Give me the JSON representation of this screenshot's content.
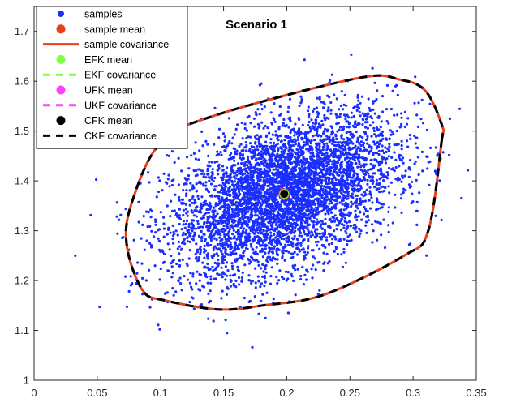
{
  "chart_data": {
    "type": "scatter",
    "title": "Scenario 1",
    "xlabel": "",
    "ylabel": "",
    "xlim": [
      0,
      0.35
    ],
    "ylim": [
      1.0,
      1.75
    ],
    "xticks": [
      0,
      0.05,
      0.1,
      0.15,
      0.2,
      0.25,
      0.3,
      0.35
    ],
    "xtick_labels": [
      "0",
      "0.05",
      "0.1",
      "0.15",
      "0.2",
      "0.25",
      "0.3",
      "0.35"
    ],
    "yticks": [
      1.0,
      1.1,
      1.2,
      1.3,
      1.4,
      1.5,
      1.6,
      1.7
    ],
    "ytick_labels": [
      "1",
      "1.1",
      "1.2",
      "1.3",
      "1.4",
      "1.5",
      "1.6",
      "1.7"
    ],
    "grid": false,
    "legend_position": "top-left",
    "samples": {
      "name": "samples",
      "color": "#1a2eff",
      "mean": [
        0.198,
        1.374
      ],
      "std": [
        0.044,
        0.08
      ],
      "correlation": 0.45,
      "count": 5000
    },
    "means": [
      {
        "name": "sample mean",
        "x": 0.198,
        "y": 1.374,
        "color": "#e8401c"
      },
      {
        "name": "EFK mean",
        "x": 0.198,
        "y": 1.374,
        "color": "#7fff3f"
      },
      {
        "name": "UFK mean",
        "x": 0.198,
        "y": 1.374,
        "color": "#ff40ff"
      },
      {
        "name": "CFK mean",
        "x": 0.198,
        "y": 1.374,
        "color": "#000000"
      }
    ],
    "covariance_ellipses": [
      {
        "name": "sample covariance",
        "style": "solid",
        "color": "#e8401c"
      },
      {
        "name": "EKF covariance",
        "style": "dashed",
        "color": "#7fff3f"
      },
      {
        "name": "UKF covariance",
        "style": "dashed",
        "color": "#ff40ff"
      },
      {
        "name": "CKF covariance",
        "style": "dashed",
        "color": "#000000"
      }
    ],
    "ellipse": {
      "center": [
        0.198,
        1.374
      ],
      "points": [
        [
          0.3226,
          1.48
        ],
        [
          0.323,
          1.51
        ],
        [
          0.31,
          1.58
        ],
        [
          0.29,
          1.603
        ],
        [
          0.256,
          1.606
        ],
        [
          0.144,
          1.532
        ],
        [
          0.1,
          1.476
        ],
        [
          0.0772,
          1.355
        ],
        [
          0.0734,
          1.27
        ],
        [
          0.086,
          1.18
        ],
        [
          0.104,
          1.16
        ],
        [
          0.146,
          1.142
        ],
        [
          0.181,
          1.15
        ],
        [
          0.23,
          1.172
        ],
        [
          0.293,
          1.25
        ],
        [
          0.312,
          1.3
        ]
      ]
    }
  },
  "legend": [
    {
      "label": "samples",
      "kind": "dot",
      "color": "#1a2eff"
    },
    {
      "label": "sample mean",
      "kind": "bigdot",
      "color": "#e8401c"
    },
    {
      "label": "sample covariance",
      "kind": "solid",
      "color": "#e8401c"
    },
    {
      "label": "EFK mean",
      "kind": "bigdot",
      "color": "#7fff3f"
    },
    {
      "label": "EKF covariance",
      "kind": "dashed",
      "color": "#7fff3f"
    },
    {
      "label": "UFK mean",
      "kind": "bigdot",
      "color": "#ff40ff"
    },
    {
      "label": "UKF covariance",
      "kind": "dashed",
      "color": "#ff40ff"
    },
    {
      "label": "CFK mean",
      "kind": "bigdot",
      "color": "#000000"
    },
    {
      "label": "CKF covariance",
      "kind": "dashed",
      "color": "#000000"
    }
  ]
}
